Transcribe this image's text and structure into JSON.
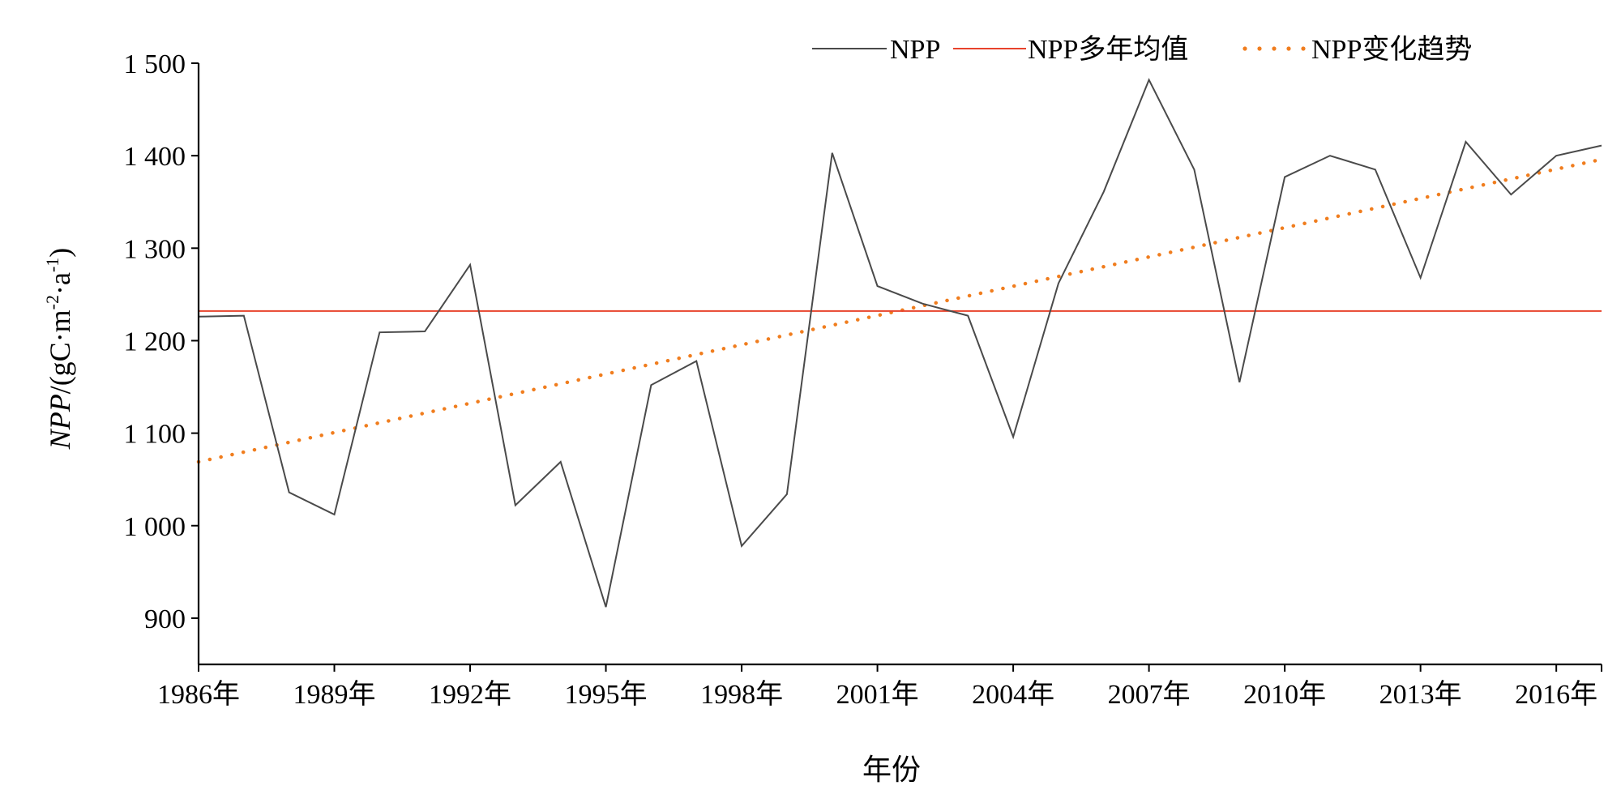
{
  "colors": {
    "npp_line": "#4a4a4a",
    "mean_line": "#e8432c",
    "trend_points": "#f07d1e",
    "axis": "#000000"
  },
  "legend": {
    "position": "top-right",
    "items": [
      "NPP",
      "NPP多年均值",
      "NPP变化趋势"
    ]
  },
  "chart_data": {
    "type": "line",
    "xlabel": "年份",
    "ylabel_prefix": "NPP",
    "ylabel_suffix": "/(gC·m",
    "ylabel_exp1": "-2",
    "ylabel_mid": "·a",
    "ylabel_exp2": "-1",
    "ylabel_close": ")",
    "xlim": [
      1986,
      2017
    ],
    "ylim": [
      850,
      1500
    ],
    "x_ticks": [
      1986,
      1989,
      1992,
      1995,
      1998,
      2001,
      2004,
      2007,
      2010,
      2013,
      2016
    ],
    "x_tick_labels": [
      "1986年",
      "1989年",
      "1992年",
      "1995年",
      "1998年",
      "2001年",
      "2004年",
      "2007年",
      "2010年",
      "2013年",
      "2016年"
    ],
    "y_ticks": [
      900,
      1000,
      1100,
      1200,
      1300,
      1400,
      1500
    ],
    "y_tick_labels": [
      "900",
      "1 000",
      "1 100",
      "1 200",
      "1 300",
      "1 400",
      "1 500"
    ],
    "grid": false,
    "series": [
      {
        "name": "NPP",
        "style": "solid",
        "x": [
          1986,
          1987,
          1988,
          1989,
          1990,
          1991,
          1992,
          1993,
          1994,
          1995,
          1996,
          1997,
          1998,
          1999,
          2000,
          2001,
          2002,
          2003,
          2004,
          2005,
          2006,
          2007,
          2008,
          2009,
          2010,
          2011,
          2012,
          2013,
          2014,
          2015,
          2016,
          2017
        ],
        "values": [
          1226,
          1227,
          1036,
          1012,
          1209,
          1210,
          1282,
          1022,
          1069,
          912,
          1152,
          1178,
          978,
          1034,
          1403,
          1259,
          1240,
          1227,
          1096,
          1262,
          1361,
          1482,
          1385,
          1155,
          1377,
          1400,
          1385,
          1268,
          1415,
          1358,
          1400,
          1411
        ]
      },
      {
        "name": "NPP多年均值",
        "style": "solid",
        "x": [
          1986,
          2017
        ],
        "values": [
          1232,
          1232
        ]
      },
      {
        "name": "NPP变化趋势",
        "style": "dotted",
        "x": [
          1986,
          2017
        ],
        "values": [
          1069,
          1396
        ]
      }
    ]
  }
}
